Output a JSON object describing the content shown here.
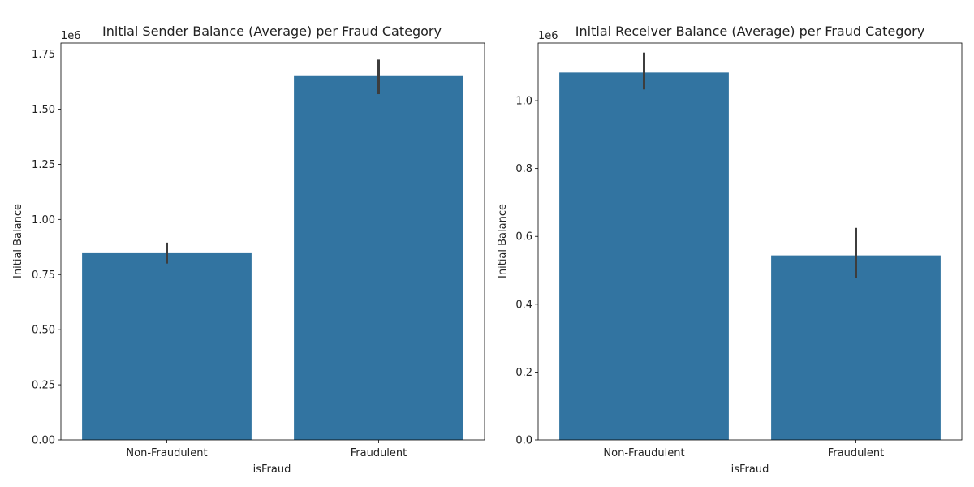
{
  "figure": {
    "background": "#ffffff",
    "bar_color": "#3274a1",
    "error_color": "#3d3d3d"
  },
  "chart_data": [
    {
      "type": "bar",
      "title": "Initial Sender Balance (Average) per Fraud Category",
      "xlabel": "isFraud",
      "ylabel": "Initial Balance",
      "y_offset_text": "1e6",
      "categories": [
        "Non-Fraudulent",
        "Fraudulent"
      ],
      "values": [
        847000,
        1650000
      ],
      "error_low": [
        800000,
        1568000
      ],
      "error_high": [
        895000,
        1725000
      ],
      "ylim": [
        0,
        1800000
      ],
      "yticks": [
        0,
        250000,
        500000,
        750000,
        1000000,
        1250000,
        1500000,
        1750000
      ],
      "ytick_labels": [
        "0.00",
        "0.25",
        "0.50",
        "0.75",
        "1.00",
        "1.25",
        "1.50",
        "1.75"
      ],
      "grid": false,
      "legend": "none"
    },
    {
      "type": "bar",
      "title": "Initial Receiver Balance (Average) per Fraud Category",
      "xlabel": "isFraud",
      "ylabel": "Initial Balance",
      "y_offset_text": "1e6",
      "categories": [
        "Non-Fraudulent",
        "Fraudulent"
      ],
      "values": [
        1083000,
        544000
      ],
      "error_low": [
        1033000,
        478000
      ],
      "error_high": [
        1142000,
        625000
      ],
      "ylim": [
        0,
        1170000
      ],
      "yticks": [
        0,
        200000,
        400000,
        600000,
        800000,
        1000000
      ],
      "ytick_labels": [
        "0.0",
        "0.2",
        "0.4",
        "0.6",
        "0.8",
        "1.0"
      ],
      "grid": false,
      "legend": "none"
    }
  ]
}
